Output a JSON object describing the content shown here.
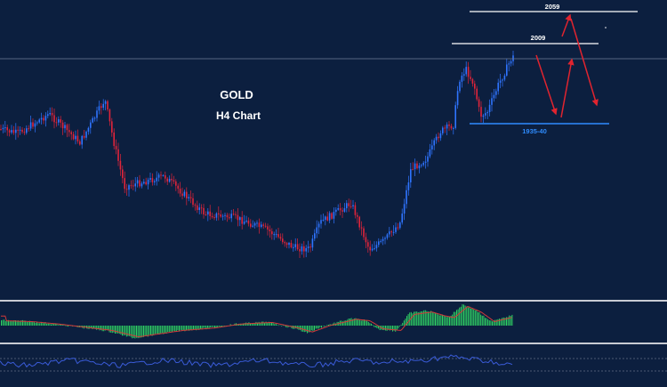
{
  "header": {
    "symbol": "GOLD",
    "timeframe": "H4 Chart"
  },
  "levels": {
    "upper_target": "2059",
    "resistance": "2009",
    "support": "1935-40"
  },
  "colors": {
    "background": "#0c1f3f",
    "bull_candle": "#2f74ff",
    "bear_candle": "#e0243a",
    "support_line": "#2f8cff",
    "level_line": "#ffffff",
    "arrow": "#e0242f",
    "histogram": "#2fd063",
    "signal_line": "#d23a3a",
    "oscillator": "#3a5bd8",
    "separator": "#c8ccd4"
  },
  "chart_data": {
    "type": "candlestick",
    "title": "GOLD H4 Chart",
    "price_levels": [
      {
        "label": "2059",
        "value": 2059
      },
      {
        "label": "2009",
        "value": 2009
      },
      {
        "label": "1935-40",
        "value": 1937.5
      }
    ],
    "approx_price_path": [
      1990,
      1980,
      1995,
      1975,
      2005,
      1945,
      1960,
      1930,
      1915,
      1900,
      1880,
      1925,
      1915,
      1872,
      1905,
      1955,
      1985,
      2020,
      2005,
      2050,
      2010,
      1945,
      2030
    ],
    "projection": [
      "down to 1935-40",
      "up to 2009",
      "up to 2059",
      "down to 1935-40"
    ],
    "indicators": [
      "histogram oscillator with signal line",
      "line oscillator"
    ]
  }
}
